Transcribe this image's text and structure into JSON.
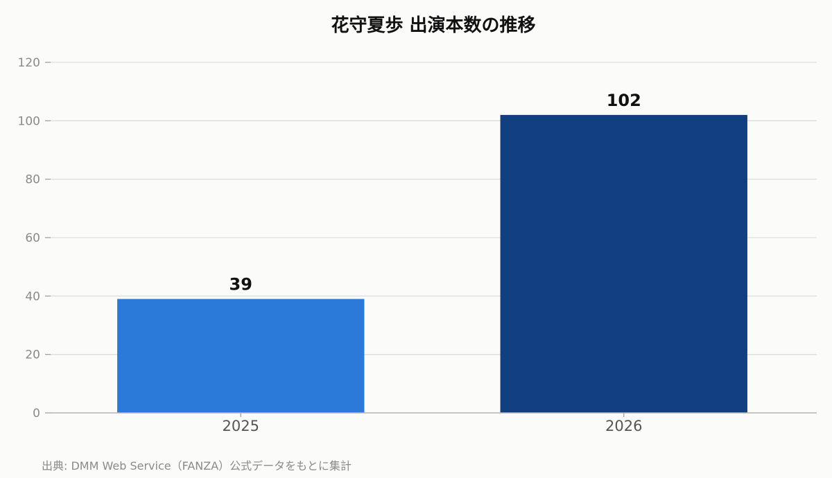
{
  "chart_data": {
    "type": "bar",
    "title": "花守夏歩 出演本数の推移",
    "categories": [
      "2025",
      "2026"
    ],
    "values": [
      39,
      102
    ],
    "bar_colors": [
      "#2b79d8",
      "#113f80"
    ],
    "xlabel": "",
    "ylabel": "",
    "ylim": [
      0,
      120
    ],
    "yticks": [
      0,
      20,
      40,
      60,
      80,
      100,
      120
    ],
    "grid": true,
    "legend": "none",
    "source": "出典: DMM Web Service（FANZA）公式データをもとに集計"
  }
}
